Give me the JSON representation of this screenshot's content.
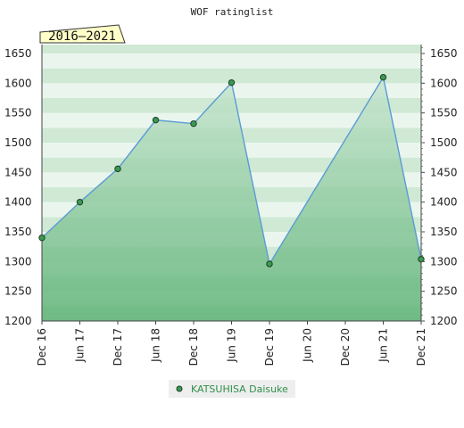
{
  "chart_data": {
    "type": "area",
    "title": "WOF ratinglist",
    "period_label": "2016–2021",
    "x_categories": [
      "Dec 16",
      "Jun 17",
      "Dec 17",
      "Jun 18",
      "Dec 18",
      "Jun 19",
      "Dec 19",
      "Jun 20",
      "Dec 20",
      "Jun 21",
      "Dec 21"
    ],
    "y_ticks": [
      1200,
      1250,
      1300,
      1350,
      1400,
      1450,
      1500,
      1550,
      1600,
      1650
    ],
    "ylim": [
      1200,
      1665
    ],
    "grid": true,
    "y_axis_both_sides": true,
    "legend_position": "bottom-center",
    "series": [
      {
        "name": "KATSUHISA Daisuke",
        "points": [
          {
            "x": "Dec 16",
            "y": 1340
          },
          {
            "x": "Jun 17",
            "y": 1400
          },
          {
            "x": "Dec 17",
            "y": 1456
          },
          {
            "x": "Jun 18",
            "y": 1538
          },
          {
            "x": "Dec 18",
            "y": 1532
          },
          {
            "x": "Jun 19",
            "y": 1601
          },
          {
            "x": "Dec 19",
            "y": 1296
          },
          {
            "x": "Jun 21",
            "y": 1610
          },
          {
            "x": "Dec 21",
            "y": 1304
          }
        ]
      }
    ],
    "colors": {
      "line": "#5b9bd5",
      "marker_fill": "#3a9a52",
      "area_top": "#c8e6d0",
      "area_bottom": "#5db276",
      "band_dark": "#cfe9d5",
      "band_light": "#eaf6ed",
      "badge_fill": "#ffffc8",
      "legend_bg": "#eeeeee"
    }
  }
}
